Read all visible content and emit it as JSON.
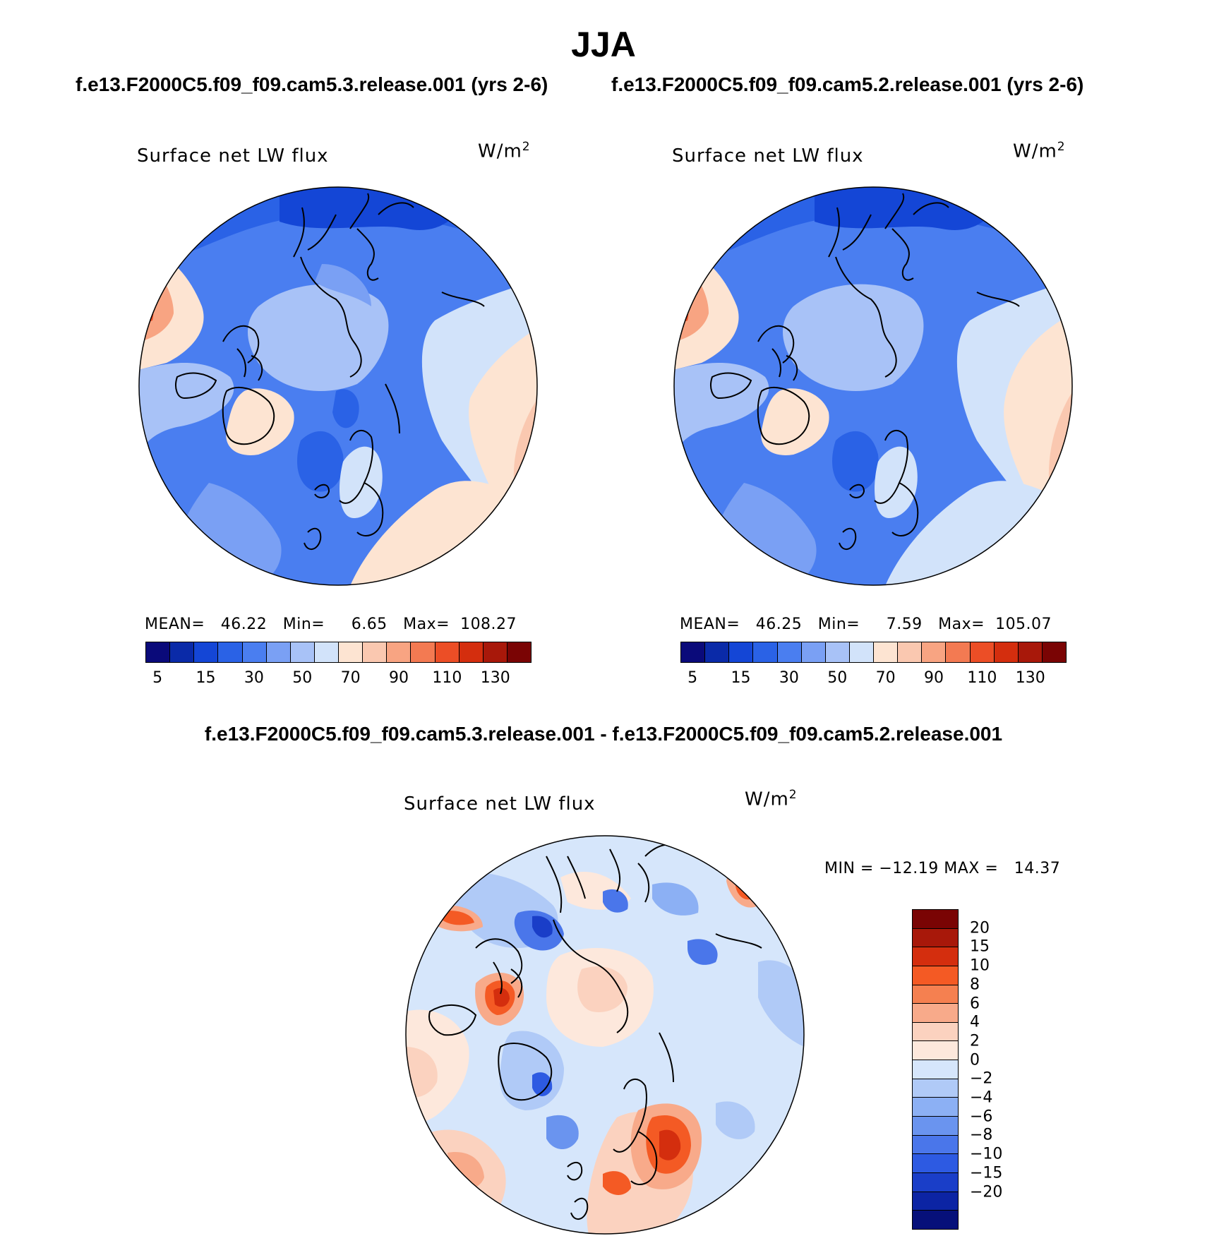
{
  "figure": {
    "season": "JJA",
    "case_a_title": "f.e13.F2000C5.f09_f09.cam5.3.release.001 (yrs 2-6)",
    "case_b_title": "f.e13.F2000C5.f09_f09.cam5.2.release.001 (yrs 2-6)",
    "diff_title": "f.e13.F2000C5.f09_f09.cam5.3.release.001 - f.e13.F2000C5.f09_f09.cam5.2.release.001"
  },
  "panels": [
    {
      "id": "case_a",
      "variable": "Surface net LW flux",
      "units_base": "W/m",
      "units_exp": "2",
      "stats": "MEAN=   46.22   Min=     6.65   Max=  108.27",
      "mean": 46.22,
      "min": 6.65,
      "max": 108.27
    },
    {
      "id": "case_b",
      "variable": "Surface net LW flux",
      "units_base": "W/m",
      "units_exp": "2",
      "stats": "MEAN=   46.25   Min=     7.59   Max=  105.07",
      "mean": 46.25,
      "min": 7.59,
      "max": 105.07
    },
    {
      "id": "difference",
      "variable": "Surface net LW flux",
      "units_base": "W/m",
      "units_exp": "2",
      "stats": "MIN = −12.19 MAX =   14.37",
      "min": -12.19,
      "max": 14.37
    }
  ],
  "colorbar_abs": {
    "colors": [
      "#0a0a7a",
      "#0a2aa8",
      "#1446d6",
      "#2a62e6",
      "#4a7ef0",
      "#7aa0f4",
      "#a8c2f7",
      "#d2e3fa",
      "#fde4d2",
      "#fac8b0",
      "#f8a482",
      "#f37a52",
      "#ec4e26",
      "#d42e0e",
      "#a8180a",
      "#7a0404"
    ],
    "tick_labels": [
      "5",
      "15",
      "30",
      "50",
      "70",
      "90",
      "110",
      "130"
    ]
  },
  "colorbar_diff": {
    "colors": [
      "#7a0404",
      "#a8180a",
      "#d42e0e",
      "#f45a24",
      "#f58050",
      "#f8aa8a",
      "#fbd2bf",
      "#fde8dc",
      "#d6e6fb",
      "#b0caf7",
      "#8cb0f4",
      "#6a94ef",
      "#4a76ea",
      "#2d5ae2",
      "#1a3ec8",
      "#0c24a4",
      "#06107a"
    ],
    "tick_labels": [
      "20",
      "15",
      "10",
      "8",
      "6",
      "4",
      "2",
      "0",
      "−2",
      "−4",
      "−6",
      "−8",
      "−10",
      "−15",
      "−20"
    ]
  }
}
